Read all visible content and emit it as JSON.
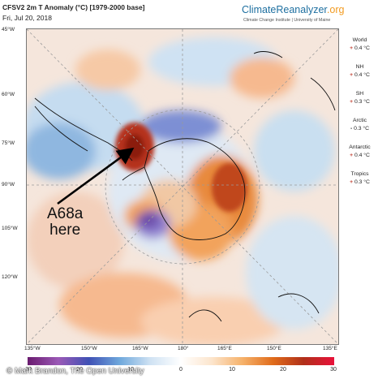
{
  "header": {
    "title": "CFSV2 2m T Anomaly (°C) [1979-2000 base]",
    "date": "Fri, Jul 20, 2018",
    "brand_main": "ClimateReanalyzer",
    "brand_tld": ".org",
    "brand_sub": "Climate Change Institute | University of Maine"
  },
  "map": {
    "lat_labels": [
      "45°W",
      "60°W",
      "75°W",
      "90°W",
      "105°W",
      "120°W"
    ],
    "lon_labels": [
      "135°W",
      "150°W",
      "165°W",
      "180°",
      "165°E",
      "150°E",
      "135°E"
    ],
    "annotation_line1": "A68a",
    "annotation_line2": "here"
  },
  "stats": [
    {
      "region": "World",
      "sign": "+",
      "value": "0.4 °C"
    },
    {
      "region": "NH",
      "sign": "+",
      "value": "0.4 °C"
    },
    {
      "region": "SH",
      "sign": "+",
      "value": "0.3 °C"
    },
    {
      "region": "Arctic",
      "sign": "-",
      "value": "0.3 °C"
    },
    {
      "region": "Antarctic",
      "sign": "+",
      "value": "0.4 °C"
    },
    {
      "region": "Tropics",
      "sign": "+",
      "value": "0.3 °C"
    }
  ],
  "colorbar": {
    "ticks": [
      "-30",
      "-20",
      "-10",
      "0",
      "10",
      "20",
      "30"
    ],
    "colors": [
      "#6a1b6f",
      "#9b59b6",
      "#3f51b5",
      "#6fa8dc",
      "#cfe2f3",
      "#ffffff",
      "#fce5cd",
      "#f6b26b",
      "#e06c1b",
      "#b0301a",
      "#e8113a"
    ]
  },
  "credit": "© Mark Brandon, The Open University"
}
